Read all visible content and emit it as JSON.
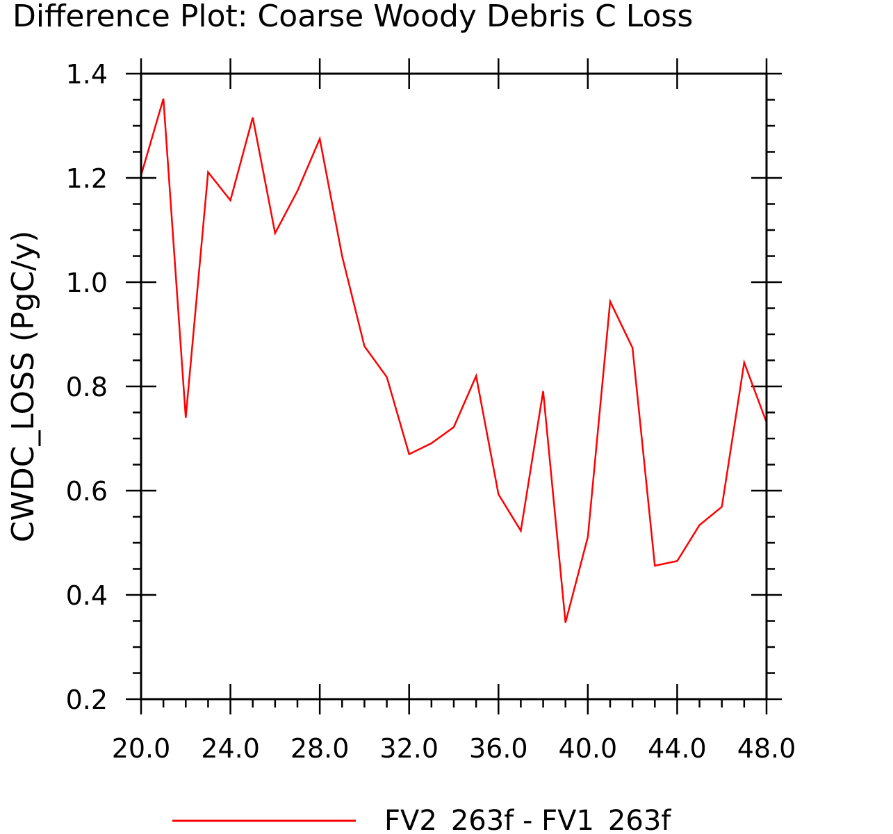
{
  "chart_data": {
    "type": "line",
    "title": "Difference Plot: Coarse Woody Debris C Loss",
    "ylabel": "CWDC_LOSS   (PgC/y)",
    "xlabel": "",
    "xlim": [
      20,
      48
    ],
    "ylim": [
      0.2,
      1.4
    ],
    "x_ticks": [
      20,
      24,
      28,
      32,
      36,
      40,
      44,
      48
    ],
    "x_tick_labels": [
      "20.0",
      "24.0",
      "28.0",
      "32.0",
      "36.0",
      "40.0",
      "44.0",
      "48.0"
    ],
    "y_ticks": [
      0.2,
      0.4,
      0.6,
      0.8,
      1.0,
      1.2,
      1.4
    ],
    "y_tick_labels": [
      "0.2",
      "0.4",
      "0.6",
      "0.8",
      "1.0",
      "1.2",
      "1.4"
    ],
    "legend_position": "bottom",
    "grid": false,
    "series": [
      {
        "name": "FV2_263f - FV1_263f",
        "color": "#ff0000",
        "x": [
          20,
          21,
          22,
          23,
          24,
          25,
          26,
          27,
          28,
          29,
          30,
          31,
          32,
          33,
          34,
          35,
          36,
          37,
          38,
          39,
          40,
          41,
          42,
          43,
          44,
          45,
          46,
          47,
          48
        ],
        "y": [
          1.205,
          1.352,
          0.74,
          1.211,
          1.157,
          1.316,
          1.094,
          1.175,
          1.275,
          1.05,
          0.877,
          0.818,
          0.67,
          0.691,
          0.722,
          0.82,
          0.593,
          0.523,
          0.791,
          0.347,
          0.511,
          0.963,
          0.874,
          0.456,
          0.465,
          0.534,
          0.569,
          0.846,
          0.731
        ]
      }
    ]
  }
}
